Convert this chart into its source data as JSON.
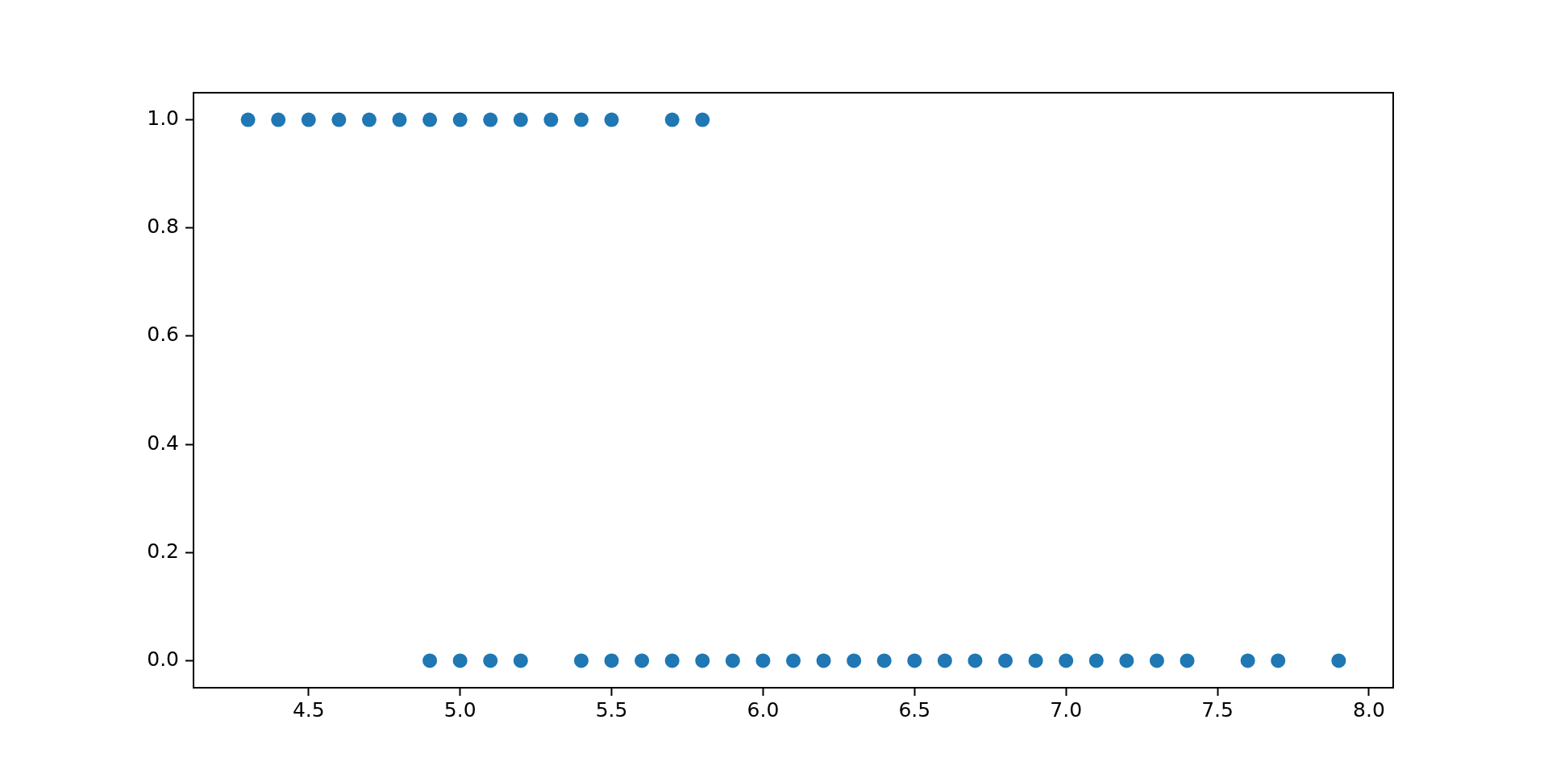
{
  "chart_data": {
    "type": "scatter",
    "x": [
      4.3,
      4.4,
      4.5,
      4.6,
      4.7,
      4.8,
      4.9,
      5.0,
      5.1,
      5.2,
      5.3,
      5.4,
      5.5,
      5.7,
      5.8,
      4.9,
      5.0,
      5.1,
      5.2,
      5.4,
      5.5,
      5.6,
      5.7,
      5.8,
      5.9,
      6.0,
      6.1,
      6.2,
      6.3,
      6.4,
      6.5,
      6.6,
      6.7,
      6.8,
      6.9,
      7.0,
      7.1,
      7.2,
      7.3,
      7.4,
      7.6,
      7.7,
      7.9
    ],
    "values": [
      1,
      1,
      1,
      1,
      1,
      1,
      1,
      1,
      1,
      1,
      1,
      1,
      1,
      1,
      1,
      0,
      0,
      0,
      0,
      0,
      0,
      0,
      0,
      0,
      0,
      0,
      0,
      0,
      0,
      0,
      0,
      0,
      0,
      0,
      0,
      0,
      0,
      0,
      0,
      0,
      0,
      0,
      0
    ],
    "color": "#1f77b4",
    "marker": "circle",
    "xlim": [
      4.12,
      8.08
    ],
    "ylim": [
      -0.05,
      1.05
    ],
    "xticks": [
      4.5,
      {
        "value": 5,
        "label": "5.0"
      },
      5.5,
      {
        "value": 6,
        "label": "6.0"
      },
      6.5,
      {
        "value": 7,
        "label": "7.0"
      },
      7.5,
      {
        "value": 8,
        "label": "8.0"
      }
    ],
    "yticks": [
      {
        "value": 0,
        "label": "0.0"
      },
      0.2,
      0.4,
      0.6,
      0.8,
      {
        "value": 1,
        "label": "1.0"
      }
    ],
    "grid": false,
    "legend": false
  }
}
